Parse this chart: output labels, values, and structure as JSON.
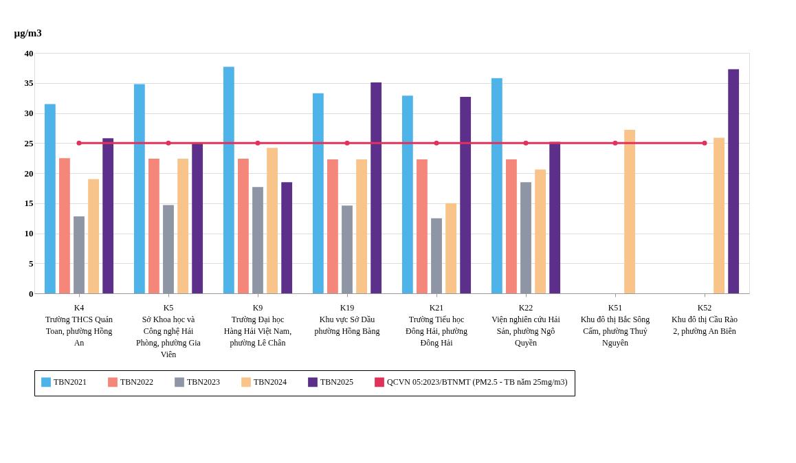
{
  "chart_data": {
    "type": "bar",
    "ylabel": "µg/m3",
    "categories": [
      "K4\nTrường THCS Quán\nToan, phường Hồng\nAn",
      "K5\nSở Khoa học và\nCông nghệ Hải\nPhòng, phường Gia\nViên",
      "K9\nTrường Đại học\nHàng Hải Việt Nam,\nphường Lê Chân",
      "K19\nKhu vực Sở Dầu\nphường Hồng Bàng",
      "K21\nTrường Tiểu học\nĐông Hải, phường\nĐông Hải",
      "K22\nViện nghiên cứu Hải\nSản, phường Ngô\nQuyền",
      "K51\nKhu đô thị Bắc Sông\nCấm, phường Thuỷ\nNguyên",
      "K52\nKhu đô thị Cầu Rào\n2, phường An Biên"
    ],
    "series": [
      {
        "name": "TBN2021",
        "color": "#4db3e8",
        "values": [
          31.5,
          34.8,
          37.7,
          33.3,
          32.9,
          35.8,
          null,
          null
        ]
      },
      {
        "name": "TBN2022",
        "color": "#f4877a",
        "values": [
          22.5,
          22.4,
          22.4,
          22.3,
          22.3,
          22.3,
          null,
          null
        ]
      },
      {
        "name": "TBN2023",
        "color": "#8e96a6",
        "values": [
          12.8,
          14.7,
          17.7,
          14.6,
          12.5,
          18.5,
          null,
          null
        ]
      },
      {
        "name": "TBN2024",
        "color": "#f9c48a",
        "values": [
          19.0,
          22.4,
          24.2,
          22.3,
          15.0,
          20.6,
          27.2,
          25.9
        ]
      },
      {
        "name": "TBN2025",
        "color": "#5b2f8a",
        "values": [
          25.8,
          24.9,
          18.5,
          35.1,
          32.7,
          25.2,
          null,
          37.3
        ]
      },
      {
        "name": "QCVN 05:2023/BTNMT (PM2.5 - TB năm 25mg/m3)",
        "type": "line",
        "color": "#e0325a",
        "marker": "circle",
        "values": [
          25,
          25,
          25,
          25,
          25,
          25,
          25,
          25
        ]
      }
    ],
    "ylim": [
      0,
      40
    ],
    "yticks": [
      0,
      5,
      10,
      15,
      20,
      25,
      30,
      35,
      40
    ],
    "grid": "y",
    "legend": "bottom"
  }
}
